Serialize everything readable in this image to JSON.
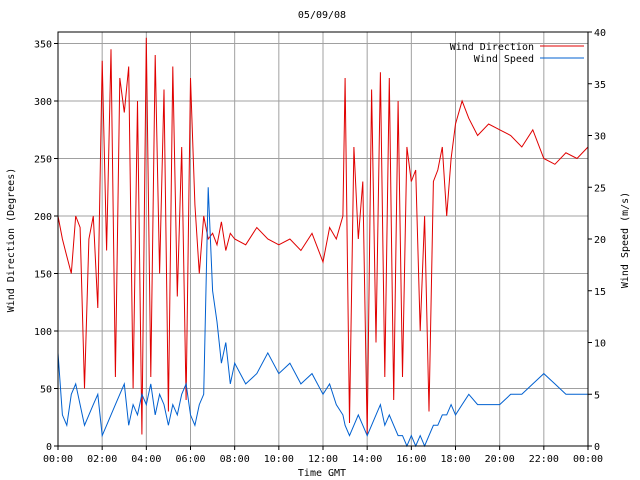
{
  "chart_data": {
    "type": "line",
    "title": "05/09/08",
    "xlabel": "Time GMT",
    "ylabel_left": "Wind Direction (Degrees)",
    "ylabel_right": "Wind Speed (m/s)",
    "x_unit": "hours",
    "xlim": [
      0,
      24
    ],
    "ylim_left": [
      0,
      360
    ],
    "ylim_right": [
      0,
      40
    ],
    "x_ticks": [
      "00:00",
      "02:00",
      "04:00",
      "06:00",
      "08:00",
      "10:00",
      "12:00",
      "14:00",
      "16:00",
      "18:00",
      "20:00",
      "22:00",
      "00:00"
    ],
    "y_ticks_left": [
      "0",
      "50",
      "100",
      "150",
      "200",
      "250",
      "300",
      "350"
    ],
    "y_ticks_right": [
      "0",
      "5",
      "10",
      "15",
      "20",
      "25",
      "30",
      "35",
      "40"
    ],
    "grid": true,
    "legend_placement": "top-right",
    "series": [
      {
        "name": "Wind Direction",
        "axis": "left",
        "color": "#e00000",
        "x": [
          0,
          0.2,
          0.4,
          0.6,
          0.8,
          1,
          1.2,
          1.4,
          1.6,
          1.8,
          2,
          2.2,
          2.4,
          2.6,
          2.8,
          3,
          3.2,
          3.4,
          3.6,
          3.8,
          4,
          4.2,
          4.4,
          4.6,
          4.8,
          5,
          5.2,
          5.4,
          5.6,
          5.8,
          6,
          6.2,
          6.4,
          6.6,
          6.8,
          7,
          7.2,
          7.4,
          7.6,
          7.8,
          8,
          8.5,
          9,
          9.5,
          10,
          10.5,
          11,
          11.5,
          12,
          12.3,
          12.6,
          12.9,
          13,
          13.2,
          13.4,
          13.6,
          13.8,
          14,
          14.2,
          14.4,
          14.6,
          14.8,
          15,
          15.2,
          15.4,
          15.6,
          15.8,
          16,
          16.2,
          16.4,
          16.6,
          16.8,
          17,
          17.2,
          17.4,
          17.6,
          17.8,
          18,
          18.3,
          18.6,
          19,
          19.5,
          20,
          20.5,
          21,
          21.5,
          22,
          22.5,
          23,
          23.5,
          24
        ],
        "y": [
          200,
          180,
          165,
          150,
          200,
          190,
          50,
          180,
          200,
          120,
          335,
          170,
          345,
          60,
          320,
          290,
          330,
          50,
          300,
          10,
          355,
          60,
          340,
          150,
          310,
          30,
          330,
          130,
          260,
          40,
          320,
          210,
          150,
          200,
          180,
          185,
          175,
          195,
          170,
          185,
          180,
          175,
          190,
          180,
          175,
          180,
          170,
          185,
          160,
          190,
          180,
          200,
          320,
          20,
          260,
          180,
          230,
          10,
          310,
          90,
          325,
          60,
          320,
          40,
          300,
          60,
          260,
          230,
          240,
          100,
          200,
          30,
          230,
          240,
          260,
          200,
          250,
          280,
          300,
          285,
          270,
          280,
          275,
          270,
          260,
          275,
          250,
          245,
          255,
          250,
          260
        ],
        "visual_peaks_approx": true
      },
      {
        "name": "Wind Speed",
        "axis": "right",
        "color": "#0060d0",
        "x": [
          0,
          0.2,
          0.4,
          0.6,
          0.8,
          1,
          1.2,
          1.4,
          1.6,
          1.8,
          2,
          2.2,
          2.4,
          2.6,
          2.8,
          3,
          3.2,
          3.4,
          3.6,
          3.8,
          4,
          4.2,
          4.4,
          4.6,
          4.8,
          5,
          5.2,
          5.4,
          5.6,
          5.8,
          6,
          6.2,
          6.4,
          6.6,
          6.8,
          7,
          7.2,
          7.4,
          7.6,
          7.8,
          8,
          8.5,
          9,
          9.5,
          10,
          10.5,
          11,
          11.5,
          12,
          12.3,
          12.6,
          12.9,
          13,
          13.2,
          13.4,
          13.6,
          13.8,
          14,
          14.2,
          14.4,
          14.6,
          14.8,
          15,
          15.2,
          15.4,
          15.6,
          15.8,
          16,
          16.2,
          16.4,
          16.6,
          16.8,
          17,
          17.2,
          17.4,
          17.6,
          17.8,
          18,
          18.3,
          18.6,
          19,
          19.5,
          20,
          20.5,
          21,
          21.5,
          22,
          22.5,
          23,
          23.5,
          24
        ],
        "y": [
          9,
          3,
          2,
          5,
          6,
          4,
          2,
          3,
          4,
          5,
          1,
          2,
          3,
          4,
          5,
          6,
          2,
          4,
          3,
          5,
          4,
          6,
          3,
          5,
          4,
          2,
          4,
          3,
          5,
          6,
          3,
          2,
          4,
          5,
          25,
          15,
          12,
          8,
          10,
          6,
          8,
          6,
          7,
          9,
          7,
          8,
          6,
          7,
          5,
          6,
          4,
          3,
          2,
          1,
          2,
          3,
          2,
          1,
          2,
          3,
          4,
          2,
          3,
          2,
          1,
          1,
          0,
          1,
          0,
          1,
          0,
          1,
          2,
          2,
          3,
          3,
          4,
          3,
          4,
          5,
          4,
          4,
          4,
          5,
          5,
          6,
          7,
          6,
          5,
          5,
          5
        ],
        "visual_peaks_approx": true
      }
    ]
  }
}
